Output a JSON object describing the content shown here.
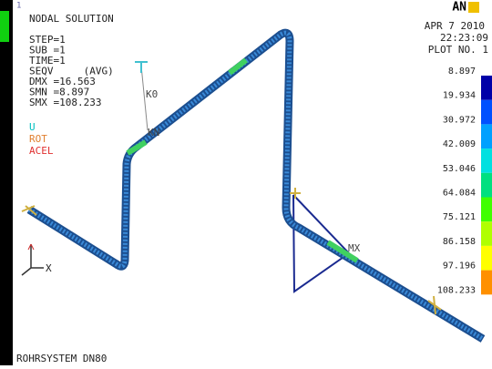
{
  "viewport_label": "1",
  "header": {
    "title": "NODAL SOLUTION",
    "lines": [
      "STEP=1",
      "SUB =1",
      "TIME=1",
      "SEQV     (AVG)",
      "DMX =16.563",
      "SMN =8.897",
      "SMX =108.233"
    ],
    "symbols": [
      "U",
      "ROT",
      "ACEL"
    ]
  },
  "stamp": {
    "logo": "AN",
    "date": "APR  7 2010",
    "time": "22:23:09",
    "plot": "PLOT NO.   1"
  },
  "legend": {
    "labels": [
      "8.897",
      "19.934",
      "30.972",
      "42.009",
      "53.046",
      "64.084",
      "75.121",
      "86.158",
      "97.196",
      "108.233"
    ],
    "colors": [
      "#0000a8",
      "#0050ff",
      "#00a0ff",
      "#00e0e0",
      "#00e080",
      "#40ff00",
      "#b0ff00",
      "#ffff00",
      "#ff9000",
      "#ff0000"
    ]
  },
  "model_labels": {
    "k0": "K0",
    "kn": "KN",
    "mx": "MX",
    "axis": "X"
  },
  "footer": "ROHRSYSTEM DN80"
}
